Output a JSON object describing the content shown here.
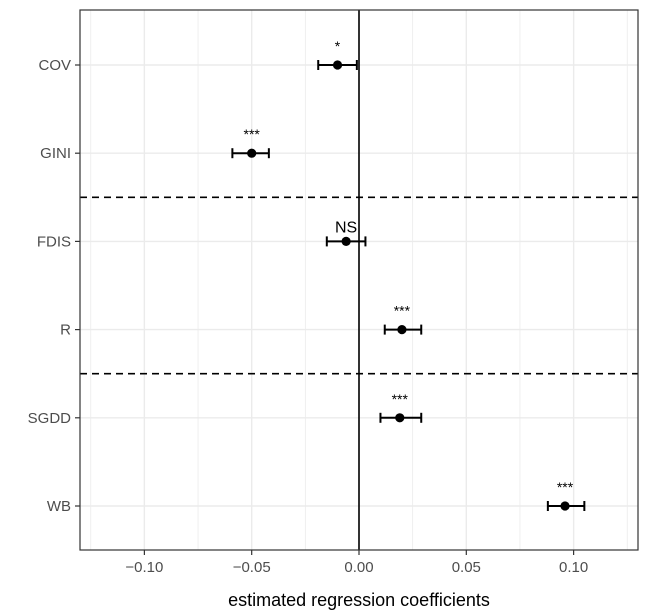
{
  "chart_data": {
    "type": "scatter",
    "title": "",
    "xlabel": "estimated regression coefficients",
    "ylabel": "",
    "xlim": [
      -0.13,
      0.13
    ],
    "x_ticks": [
      -0.1,
      -0.05,
      0.0,
      0.05,
      0.1
    ],
    "x_tick_labels": [
      "−0.10",
      "−0.05",
      "0.00",
      "0.05",
      "0.10"
    ],
    "categories": [
      "COV",
      "GINI",
      "FDIS",
      "R",
      "SGDD",
      "WB"
    ],
    "points": [
      {
        "label": "COV",
        "estimate": -0.01,
        "lower": -0.019,
        "upper": -0.001,
        "significance": "*"
      },
      {
        "label": "GINI",
        "estimate": -0.05,
        "lower": -0.059,
        "upper": -0.042,
        "significance": "***"
      },
      {
        "label": "FDIS",
        "estimate": -0.006,
        "lower": -0.015,
        "upper": 0.003,
        "significance": "NS"
      },
      {
        "label": "R",
        "estimate": 0.02,
        "lower": 0.012,
        "upper": 0.029,
        "significance": "***"
      },
      {
        "label": "SGDD",
        "estimate": 0.019,
        "lower": 0.01,
        "upper": 0.029,
        "significance": "***"
      },
      {
        "label": "WB",
        "estimate": 0.096,
        "lower": 0.088,
        "upper": 0.105,
        "significance": "***"
      }
    ],
    "reference_line_x": 0.0,
    "group_separators_between": [
      [
        "GINI",
        "FDIS"
      ],
      [
        "R",
        "SGDD"
      ]
    ],
    "grid": true,
    "legend": "none",
    "colors": {
      "point": "#000000",
      "grid": "#ebebeb",
      "panel_border": "#333333",
      "text": "#4d4d4d"
    }
  }
}
